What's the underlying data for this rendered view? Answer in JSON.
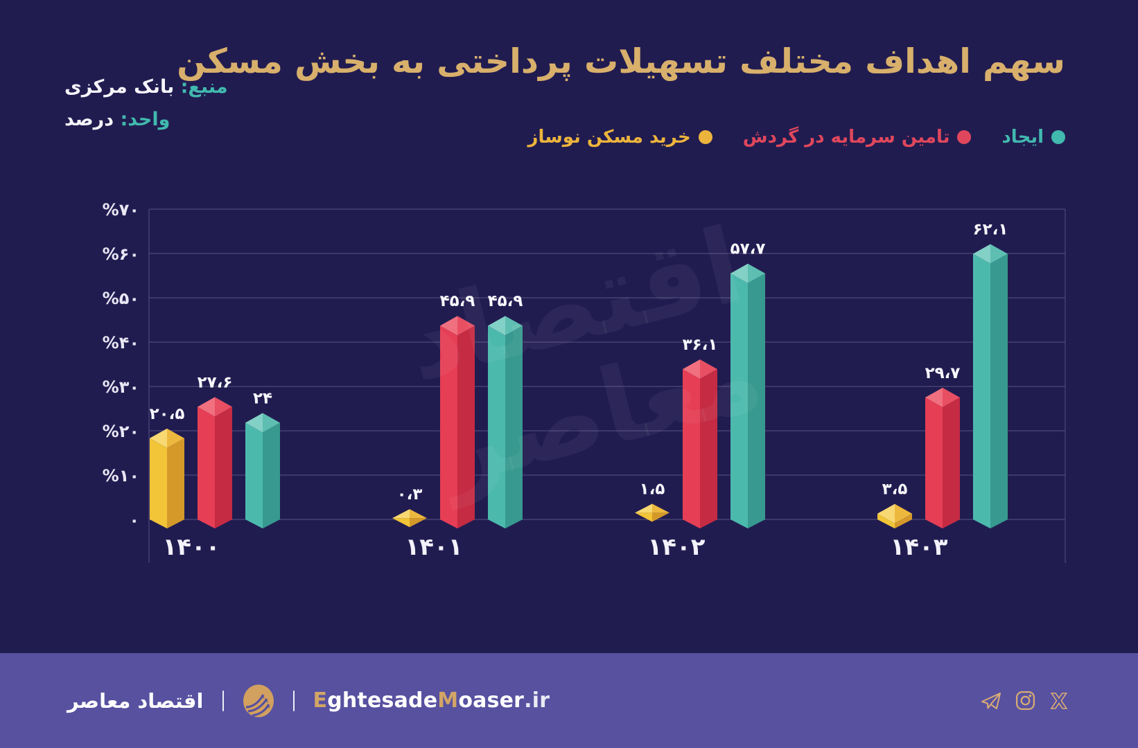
{
  "header": {
    "title": "سهم اهداف مختلف تسهیلات پرداختی به بخش مسکن",
    "source_label": "منبع:",
    "source_value": "بانک مرکزی",
    "unit_label": "واحد:",
    "unit_value": "درصد"
  },
  "legend": [
    {
      "key": "creation",
      "label": "ایجاد",
      "color": "#41b9ae"
    },
    {
      "key": "working-capital",
      "label": "تامین سرمایه در گردش",
      "color": "#e0475c"
    },
    {
      "key": "new-housing-purchase",
      "label": "خرید مسکن نوساز",
      "color": "#ecb43d"
    }
  ],
  "chart_data": {
    "type": "bar",
    "title": "سهم اهداف مختلف تسهیلات پرداختی به بخش مسکن",
    "unit": "درصد (percent)",
    "source": "بانک مرکزی",
    "categories": [
      "۱۴۰۰",
      "۱۴۰۱",
      "۱۴۰۲",
      "۱۴۰۳"
    ],
    "categories_en": [
      "1400",
      "1401",
      "1402",
      "1403"
    ],
    "ylim": [
      0,
      70
    ],
    "ytick_step": 10,
    "ytick_labels": [
      "%۷۰",
      "%۶۰",
      "%۵۰",
      "%۴۰",
      "%۳۰",
      "%۲۰",
      "%۱۰",
      "۰"
    ],
    "grid": true,
    "legend_position": "top-right",
    "series": [
      {
        "key": "new-housing-purchase",
        "name": "خرید مسکن نوساز",
        "values": [
          20.5,
          0.3,
          1.5,
          3.5
        ],
        "labels": [
          "۲۰،۵",
          "۰،۳",
          "۱،۵",
          "۳،۵"
        ],
        "color_main": "#f2c437",
        "color_dark": "#d5992a",
        "color_top_light": "#f7d872",
        "color_top_mid": "#edb83e"
      },
      {
        "key": "working-capital",
        "name": "تامین سرمایه در گردش",
        "values": [
          27.6,
          45.9,
          36.1,
          29.7
        ],
        "labels": [
          "۲۷،۶",
          "۴۵،۹",
          "۳۶،۱",
          "۲۹،۷"
        ],
        "color_main": "#e63e55",
        "color_dark": "#c52b43",
        "color_top_light": "#f0707f",
        "color_top_mid": "#e84f63"
      },
      {
        "key": "creation",
        "name": "ایجاد",
        "values": [
          24,
          45.9,
          57.7,
          62.1
        ],
        "labels": [
          "۲۴",
          "۴۵،۹",
          "۵۷،۷",
          "۶۲،۱"
        ],
        "color_main": "#4cb9ad",
        "color_dark": "#37998f",
        "color_top_light": "#83d0c6",
        "color_top_mid": "#5fbeb2"
      }
    ]
  },
  "watermark": "اقتصاد معاصر",
  "footer": {
    "brand_fa": "اقتصاد معاصر",
    "site": [
      "E",
      "ghtesade",
      "M",
      "oaser",
      ".ir"
    ],
    "social": [
      "telegram",
      "instagram",
      "x"
    ]
  },
  "colors": {
    "background": "#211c50",
    "footer_background": "#5751a0",
    "title_gold": "#d8b06c",
    "accent_teal": "#41b9ae",
    "accent_red": "#e0475c",
    "accent_yellow": "#ecb43d",
    "grid_line": "#454170",
    "text_white": "#f5f4fa",
    "footer_gold": "#d2a566"
  }
}
